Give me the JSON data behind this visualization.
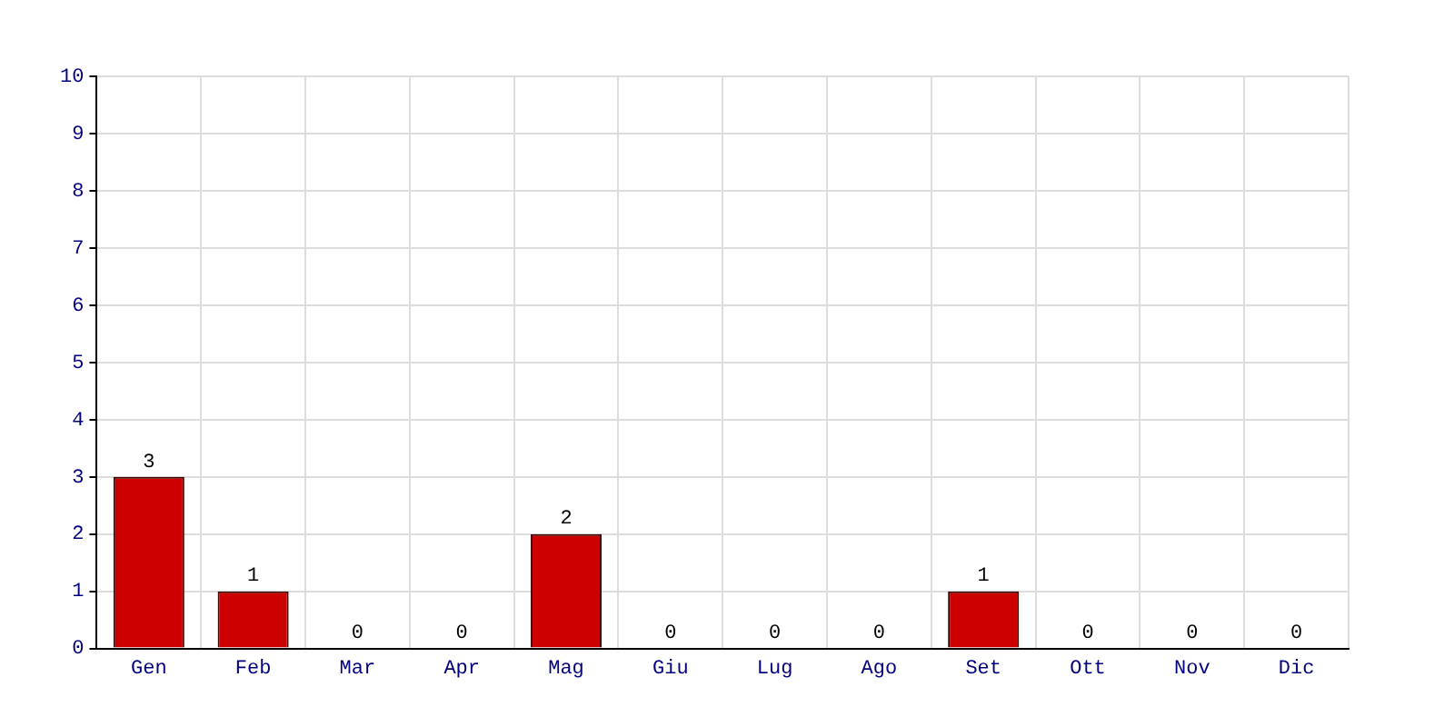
{
  "chart_data": {
    "type": "bar",
    "categories": [
      "Gen",
      "Feb",
      "Mar",
      "Apr",
      "Mag",
      "Giu",
      "Lug",
      "Ago",
      "Set",
      "Ott",
      "Nov",
      "Dic"
    ],
    "values": [
      3,
      1,
      0,
      0,
      2,
      0,
      0,
      0,
      1,
      0,
      0,
      0
    ],
    "color": "#cc0000",
    "ylim": [
      0,
      10
    ],
    "yticks": [
      0,
      1,
      2,
      3,
      4,
      5,
      6,
      7,
      8,
      9,
      10
    ],
    "grid": true,
    "data_labels": true
  }
}
